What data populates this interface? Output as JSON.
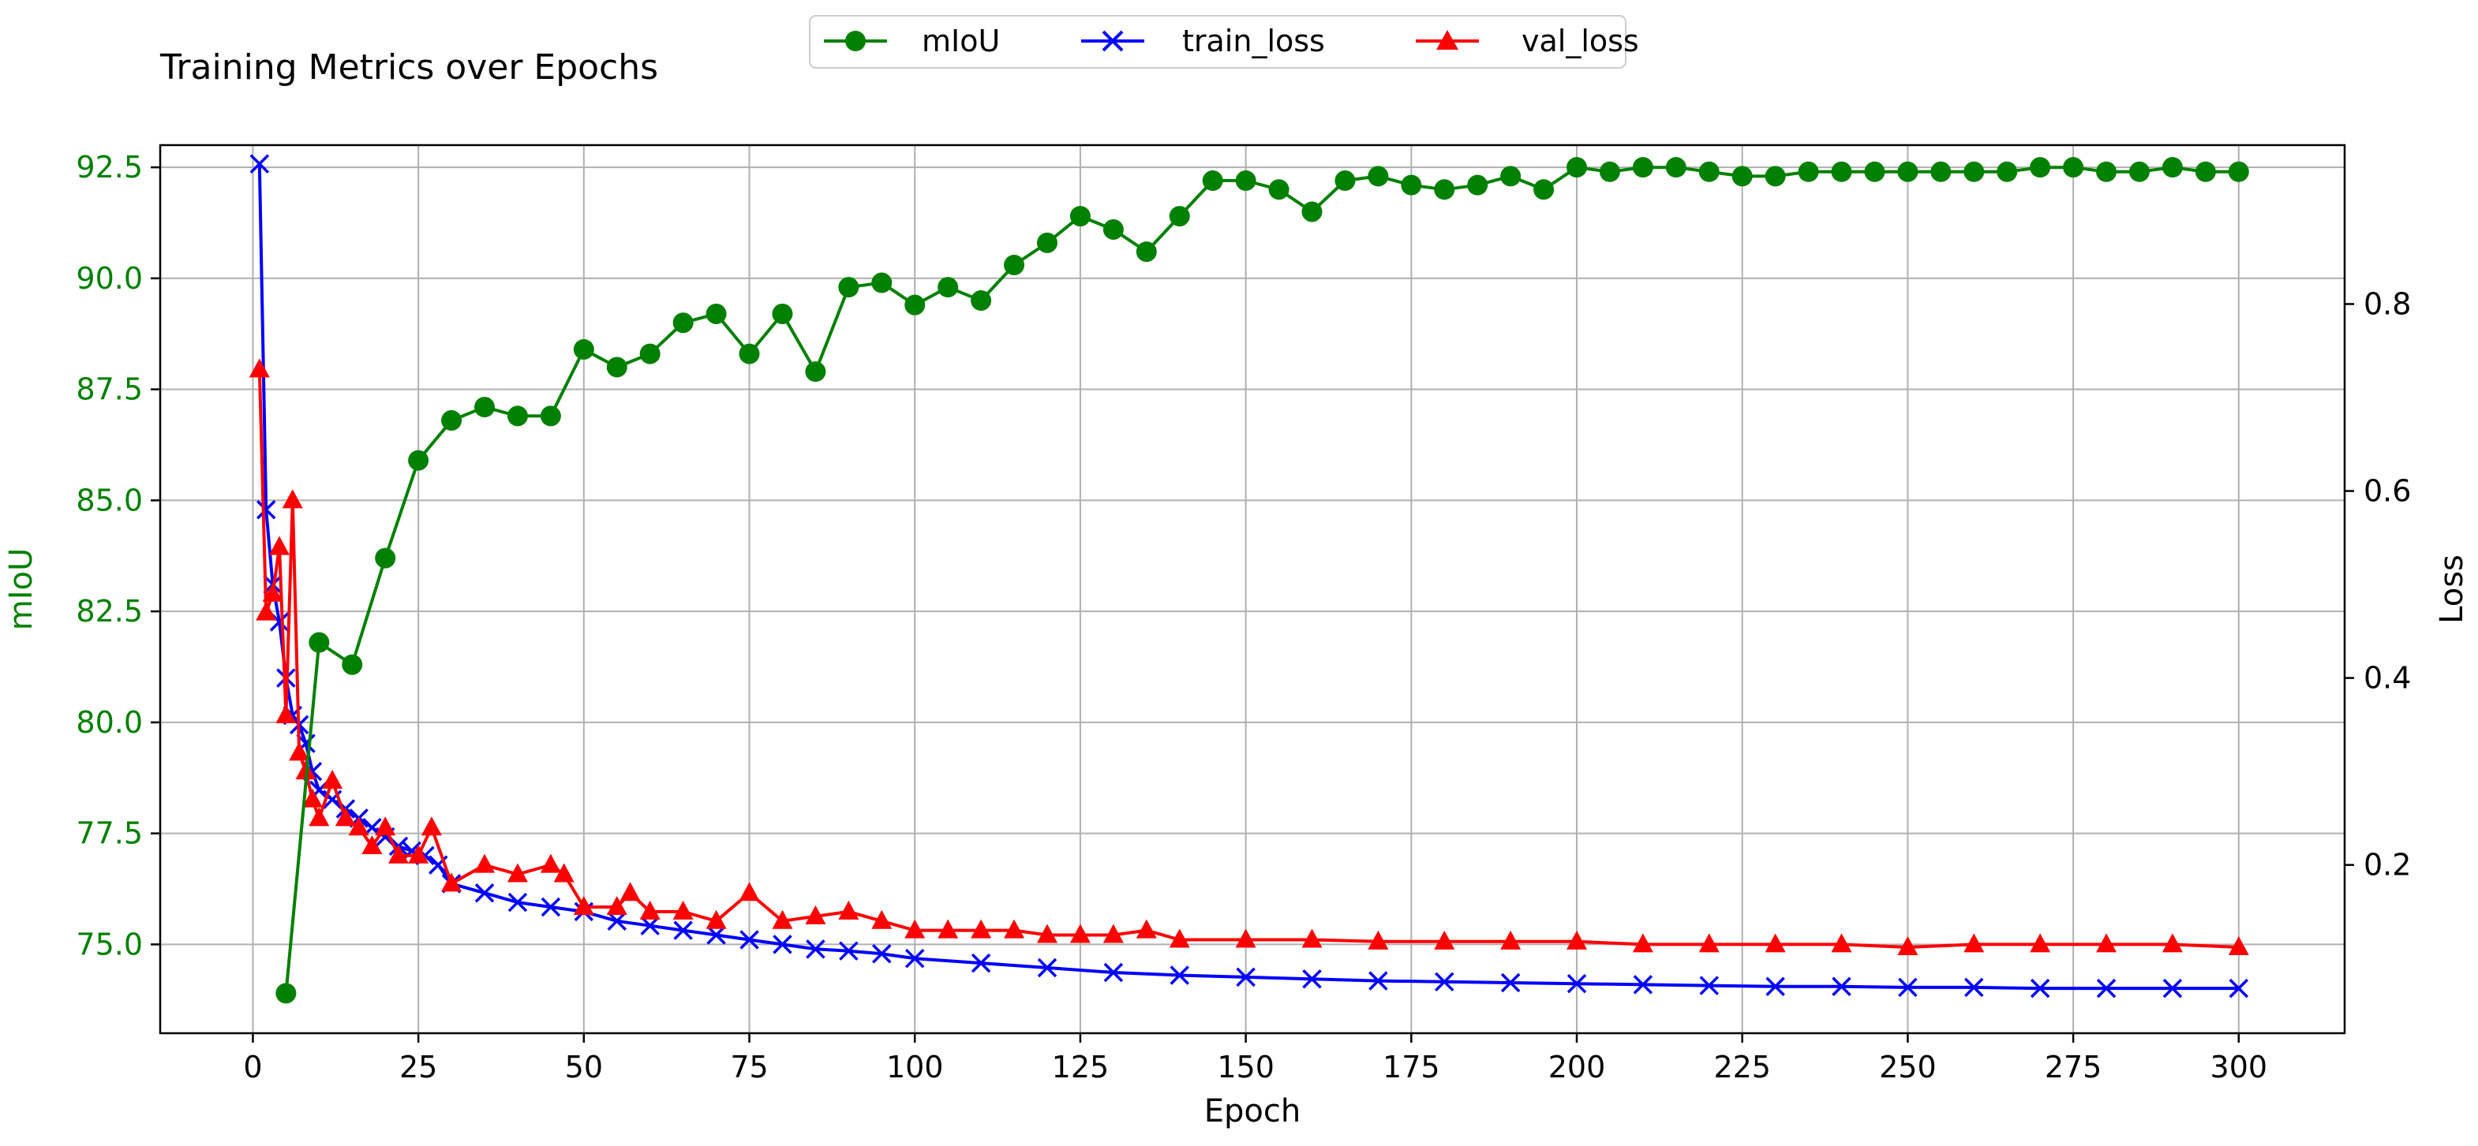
{
  "chart_data": {
    "type": "line",
    "title": "Training Metrics over Epochs",
    "xlabel": "Epoch",
    "ylabel_left": "mIoU",
    "ylabel_right": "Loss",
    "xlim": [
      -14,
      316
    ],
    "ylim_left": [
      73.0,
      93.0
    ],
    "ylim_right": [
      0.02,
      0.97
    ],
    "x_ticks": [
      "0",
      "25",
      "50",
      "75",
      "100",
      "125",
      "150",
      "175",
      "200",
      "225",
      "250",
      "275",
      "300"
    ],
    "x_tick_values": [
      0,
      25,
      50,
      75,
      100,
      125,
      150,
      175,
      200,
      225,
      250,
      275,
      300
    ],
    "y_ticks_left": [
      "75.0",
      "77.5",
      "80.0",
      "82.5",
      "85.0",
      "87.5",
      "90.0",
      "92.5"
    ],
    "y_tick_values_left": [
      75.0,
      77.5,
      80.0,
      82.5,
      85.0,
      87.5,
      90.0,
      92.5
    ],
    "y_ticks_right": [
      "0.2",
      "0.4",
      "0.6",
      "0.8"
    ],
    "y_tick_values_right": [
      0.2,
      0.4,
      0.6,
      0.8
    ],
    "grid": true,
    "legend_position": "top-center",
    "colors": {
      "miou": "#008000",
      "train_loss": "#0000ff",
      "val_loss": "#ff0000",
      "left_axis_text": "#008000"
    },
    "series": [
      {
        "name": "mIoU",
        "axis": "left",
        "marker": "circle",
        "x": [
          5,
          10,
          15,
          20,
          25,
          30,
          35,
          40,
          45,
          50,
          55,
          60,
          65,
          70,
          75,
          80,
          85,
          90,
          95,
          100,
          105,
          110,
          115,
          120,
          125,
          130,
          135,
          140,
          145,
          150,
          155,
          160,
          165,
          170,
          175,
          180,
          185,
          190,
          195,
          200,
          205,
          210,
          215,
          220,
          225,
          230,
          235,
          240,
          245,
          250,
          255,
          260,
          265,
          270,
          275,
          280,
          285,
          290,
          295,
          300
        ],
        "y": [
          73.9,
          81.8,
          81.3,
          83.7,
          85.9,
          86.8,
          87.1,
          86.9,
          86.9,
          88.4,
          88.0,
          88.3,
          89.0,
          89.2,
          88.3,
          89.2,
          87.9,
          89.8,
          89.9,
          89.4,
          89.8,
          89.5,
          90.3,
          90.8,
          91.4,
          91.1,
          90.6,
          91.4,
          92.2,
          92.2,
          92.0,
          91.5,
          92.2,
          92.3,
          92.1,
          92.0,
          92.1,
          92.3,
          92.0,
          92.5,
          92.4,
          92.5,
          92.5,
          92.4,
          92.3,
          92.3,
          92.4,
          92.4,
          92.4,
          92.4,
          92.4,
          92.4,
          92.4,
          92.5,
          92.5,
          92.4,
          92.4,
          92.5,
          92.4,
          92.4
        ]
      },
      {
        "name": "train_loss",
        "axis": "right",
        "marker": "x",
        "x": [
          1,
          2,
          3,
          4,
          5,
          6,
          7,
          8,
          9,
          10,
          12,
          14,
          16,
          18,
          20,
          22,
          24,
          26,
          28,
          30,
          35,
          40,
          45,
          50,
          55,
          60,
          65,
          70,
          75,
          80,
          85,
          90,
          95,
          100,
          110,
          120,
          130,
          140,
          150,
          160,
          170,
          180,
          190,
          200,
          210,
          220,
          230,
          240,
          250,
          260,
          270,
          280,
          290,
          300
        ],
        "y": [
          0.95,
          0.58,
          0.5,
          0.46,
          0.4,
          0.36,
          0.35,
          0.33,
          0.3,
          0.28,
          0.27,
          0.26,
          0.25,
          0.24,
          0.23,
          0.22,
          0.215,
          0.21,
          0.2,
          0.18,
          0.17,
          0.16,
          0.155,
          0.15,
          0.14,
          0.135,
          0.13,
          0.125,
          0.12,
          0.115,
          0.11,
          0.108,
          0.105,
          0.1,
          0.095,
          0.09,
          0.085,
          0.082,
          0.08,
          0.078,
          0.076,
          0.075,
          0.074,
          0.073,
          0.072,
          0.071,
          0.07,
          0.07,
          0.069,
          0.069,
          0.068,
          0.068,
          0.068,
          0.068
        ]
      },
      {
        "name": "val_loss",
        "axis": "right",
        "marker": "triangle",
        "x": [
          1,
          2,
          3,
          4,
          5,
          6,
          7,
          8,
          9,
          10,
          12,
          14,
          16,
          18,
          20,
          22,
          25,
          27,
          30,
          35,
          40,
          45,
          47,
          50,
          55,
          57,
          60,
          65,
          70,
          75,
          80,
          85,
          90,
          95,
          100,
          105,
          110,
          115,
          120,
          125,
          130,
          135,
          140,
          150,
          160,
          170,
          180,
          190,
          200,
          210,
          220,
          230,
          240,
          250,
          260,
          270,
          280,
          290,
          300
        ],
        "y": [
          0.73,
          0.47,
          0.49,
          0.54,
          0.36,
          0.59,
          0.32,
          0.3,
          0.27,
          0.25,
          0.29,
          0.25,
          0.24,
          0.22,
          0.24,
          0.21,
          0.21,
          0.24,
          0.18,
          0.2,
          0.19,
          0.2,
          0.19,
          0.155,
          0.155,
          0.17,
          0.15,
          0.15,
          0.14,
          0.17,
          0.14,
          0.145,
          0.15,
          0.14,
          0.13,
          0.13,
          0.13,
          0.13,
          0.125,
          0.125,
          0.125,
          0.13,
          0.12,
          0.12,
          0.12,
          0.118,
          0.118,
          0.118,
          0.118,
          0.115,
          0.115,
          0.115,
          0.115,
          0.112,
          0.115,
          0.115,
          0.115,
          0.115,
          0.112
        ]
      }
    ]
  }
}
